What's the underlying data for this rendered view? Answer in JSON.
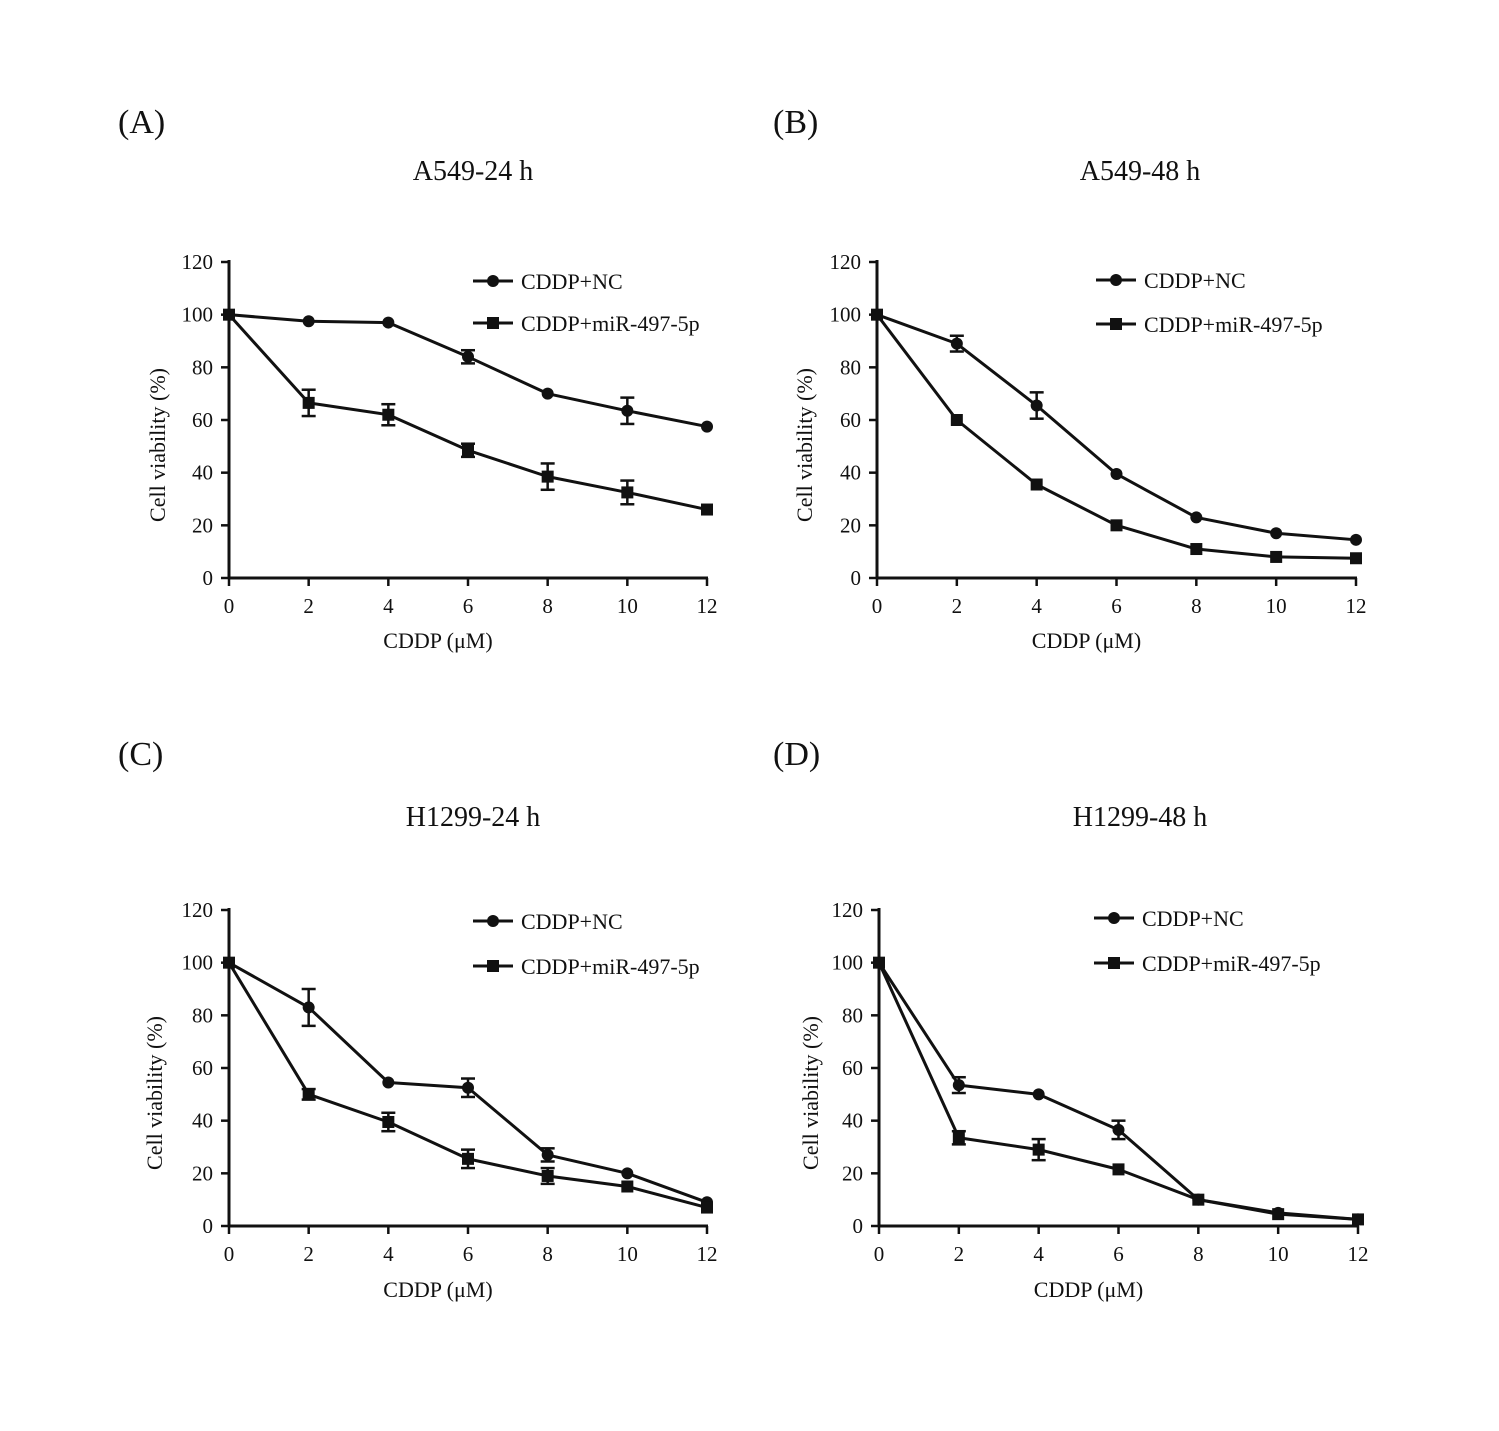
{
  "chart_data": [
    {
      "type": "line",
      "panel": "(A)",
      "title": "A549-24 h",
      "xlabel": "CDDP (μM)",
      "ylabel": "Cell viability (%)",
      "x": [
        0,
        2,
        4,
        6,
        8,
        10,
        12
      ],
      "xticks": [
        "0",
        "2",
        "4",
        "6",
        "8",
        "10",
        "12"
      ],
      "yticks": [
        "0",
        "20",
        "40",
        "60",
        "80",
        "100",
        "120"
      ],
      "xlim": [
        0,
        12
      ],
      "ylim": [
        0,
        120
      ],
      "legend_position": "top-right",
      "series": [
        {
          "name": "CDDP+NC",
          "marker": "circle",
          "values": [
            100,
            97.5,
            97,
            84,
            70,
            63.5,
            57.5
          ],
          "errors": [
            0,
            0,
            0,
            2.5,
            0,
            5,
            0
          ]
        },
        {
          "name": "CDDP+miR-497-5p",
          "marker": "square",
          "values": [
            100,
            66.5,
            62,
            48.5,
            38.5,
            32.5,
            26
          ],
          "errors": [
            0,
            5,
            4,
            2.5,
            5,
            4.5,
            0
          ]
        }
      ]
    },
    {
      "type": "line",
      "panel": "(B)",
      "title": "A549-48 h",
      "xlabel": "CDDP (μM)",
      "ylabel": "Cell viability (%)",
      "x": [
        0,
        2,
        4,
        6,
        8,
        10,
        12
      ],
      "xticks": [
        "0",
        "2",
        "4",
        "6",
        "8",
        "10",
        "12"
      ],
      "yticks": [
        "0",
        "20",
        "40",
        "60",
        "80",
        "100",
        "120"
      ],
      "xlim": [
        0,
        12
      ],
      "ylim": [
        0,
        120
      ],
      "legend_position": "top-right",
      "series": [
        {
          "name": "CDDP+NC",
          "marker": "circle",
          "values": [
            100,
            89,
            65.5,
            39.5,
            23,
            17,
            14.5
          ],
          "errors": [
            0,
            3,
            5,
            0,
            0,
            0,
            0
          ]
        },
        {
          "name": "CDDP+miR-497-5p",
          "marker": "square",
          "values": [
            100,
            60,
            35.5,
            20,
            11,
            8,
            7.5
          ],
          "errors": [
            0,
            0,
            0,
            0,
            0,
            0,
            0
          ]
        }
      ]
    },
    {
      "type": "line",
      "panel": "(C)",
      "title": "H1299-24 h",
      "xlabel": "CDDP (μM)",
      "ylabel": "Cell viability (%)",
      "x": [
        0,
        2,
        4,
        6,
        8,
        10,
        12
      ],
      "xticks": [
        "0",
        "2",
        "4",
        "6",
        "8",
        "10",
        "12"
      ],
      "yticks": [
        "0",
        "20",
        "40",
        "60",
        "80",
        "100",
        "120"
      ],
      "xlim": [
        0,
        12
      ],
      "ylim": [
        0,
        120
      ],
      "legend_position": "top-right",
      "series": [
        {
          "name": "CDDP+NC",
          "marker": "circle",
          "values": [
            100,
            83,
            54.5,
            52.5,
            27,
            20,
            9
          ],
          "errors": [
            0,
            7,
            0,
            3.5,
            2.5,
            0,
            0
          ]
        },
        {
          "name": "CDDP+miR-497-5p",
          "marker": "square",
          "values": [
            100,
            50,
            39.5,
            25.5,
            19,
            15,
            7
          ],
          "errors": [
            0,
            2,
            3.5,
            3.5,
            3,
            0,
            0
          ]
        }
      ]
    },
    {
      "type": "line",
      "panel": "(D)",
      "title": "H1299-48 h",
      "xlabel": "CDDP (μM)",
      "ylabel": "Cell viability (%)",
      "x": [
        0,
        2,
        4,
        6,
        8,
        10,
        12
      ],
      "xticks": [
        "0",
        "2",
        "4",
        "6",
        "8",
        "10",
        "12"
      ],
      "yticks": [
        "0",
        "20",
        "40",
        "60",
        "80",
        "100",
        "120"
      ],
      "xlim": [
        0,
        12
      ],
      "ylim": [
        0,
        120
      ],
      "legend_position": "top-right",
      "series": [
        {
          "name": "CDDP+NC",
          "marker": "circle",
          "values": [
            100,
            53.5,
            50,
            36.5,
            10,
            5,
            2.5
          ],
          "errors": [
            0,
            3,
            0,
            3.5,
            0,
            0,
            0
          ]
        },
        {
          "name": "CDDP+miR-497-5p",
          "marker": "square",
          "values": [
            100,
            33.5,
            29,
            21.5,
            10,
            4.5,
            2.5
          ],
          "errors": [
            0,
            2.5,
            4,
            0,
            0,
            0,
            0
          ]
        }
      ]
    }
  ]
}
